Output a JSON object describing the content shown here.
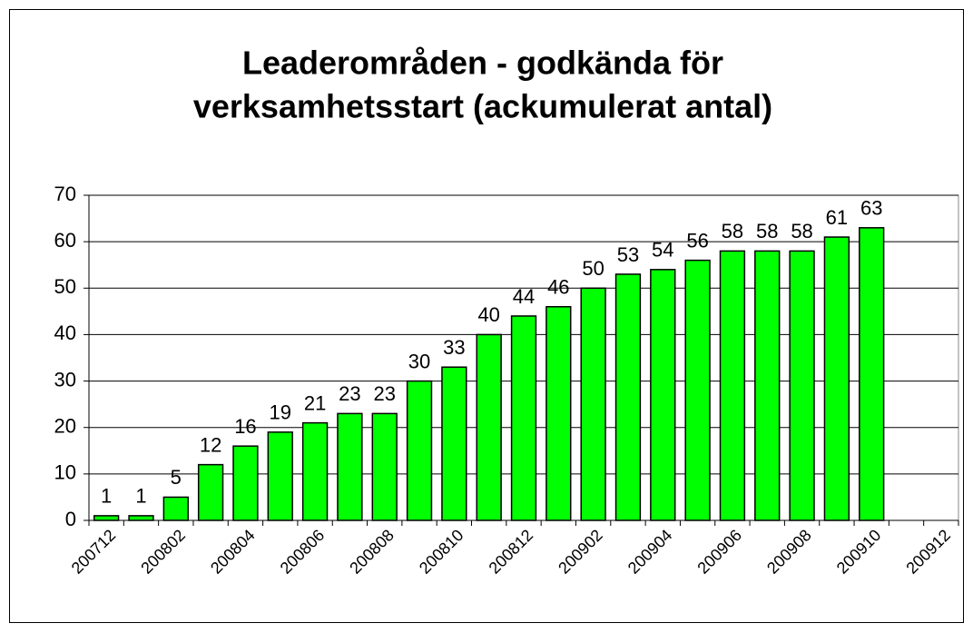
{
  "chart_data": {
    "type": "bar",
    "title": [
      "Leaderområden - godkända för",
      "verksamhetsstart (ackumulerat antal)"
    ],
    "categories": [
      "200712",
      null,
      "200802",
      null,
      "200804",
      null,
      "200806",
      null,
      "200808",
      null,
      "200810",
      null,
      "200812",
      null,
      "200902",
      null,
      "200904",
      null,
      "200906",
      null,
      "200908",
      null,
      "200910",
      null,
      "200912"
    ],
    "values": [
      1,
      1,
      5,
      12,
      16,
      19,
      21,
      23,
      23,
      30,
      33,
      40,
      44,
      46,
      50,
      53,
      54,
      56,
      58,
      58,
      58,
      61,
      63,
      null,
      null
    ],
    "color": "#00ff00",
    "ylim": [
      0,
      70
    ],
    "yticks": [
      0,
      10,
      20,
      30,
      40,
      50,
      60,
      70
    ],
    "grid": true
  }
}
